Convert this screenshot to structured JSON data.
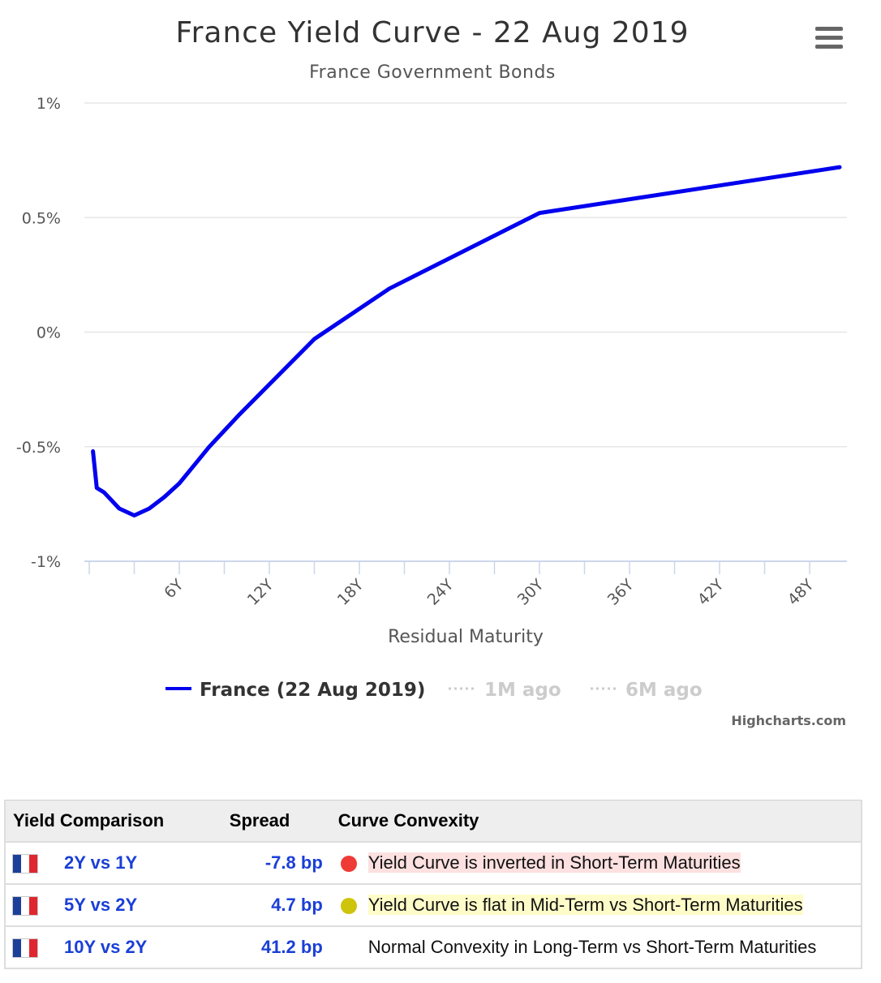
{
  "chart": {
    "title": "France Yield Curve - 22 Aug 2019",
    "subtitle": "France Government Bonds",
    "credits": "Highcharts.com",
    "menu_icon": "hamburger-icon"
  },
  "chart_data": {
    "type": "line",
    "title": "France Yield Curve - 22 Aug 2019",
    "subtitle": "France Government Bonds",
    "xlabel": "Residual Maturity",
    "ylabel": "",
    "xlim": [
      0,
      50
    ],
    "ylim": [
      -1,
      1
    ],
    "yticks": [
      "1%",
      "0.5%",
      "0%",
      "-0.5%",
      "-1%"
    ],
    "ytick_values": [
      1,
      0.5,
      0,
      -0.5,
      -1
    ],
    "xticks": [
      "6Y",
      "12Y",
      "18Y",
      "24Y",
      "30Y",
      "36Y",
      "42Y",
      "48Y"
    ],
    "xtick_values": [
      6,
      12,
      18,
      24,
      30,
      36,
      42,
      48
    ],
    "grid": true,
    "series": [
      {
        "name": "France (22 Aug 2019)",
        "color": "#0000ee",
        "x": [
          0.25,
          0.5,
          0.75,
          1,
          2,
          3,
          4,
          5,
          6,
          7,
          8,
          9,
          10,
          15,
          20,
          30,
          50
        ],
        "y": [
          -0.52,
          -0.68,
          -0.69,
          -0.7,
          -0.77,
          -0.8,
          -0.77,
          -0.72,
          -0.66,
          -0.58,
          -0.5,
          -0.43,
          -0.36,
          -0.03,
          0.19,
          0.52,
          0.72
        ]
      }
    ],
    "legend": {
      "placement": "bottom",
      "items": [
        {
          "label": "France (22 Aug 2019)",
          "active": true
        },
        {
          "label": "1M ago",
          "active": false
        },
        {
          "label": "6M ago",
          "active": false
        }
      ]
    }
  },
  "table": {
    "headers": [
      "Yield Comparison",
      "Spread",
      "Curve Convexity"
    ],
    "rows": [
      {
        "pair": "2Y vs 1Y",
        "spread": "-7.8 bp",
        "status": "red",
        "status_color": "#ef3b36",
        "convexity": "Yield Curve is inverted in Short-Term Maturities"
      },
      {
        "pair": "5Y vs 2Y",
        "spread": "4.7 bp",
        "status": "yellow",
        "status_color": "#cfc40c",
        "convexity": "Yield Curve is flat in Mid-Term vs Short-Term Maturities"
      },
      {
        "pair": "10Y vs 2Y",
        "spread": "41.2 bp",
        "status": "none",
        "status_color": "",
        "convexity": "Normal Convexity in Long-Term vs Short-Term Maturities"
      }
    ]
  }
}
